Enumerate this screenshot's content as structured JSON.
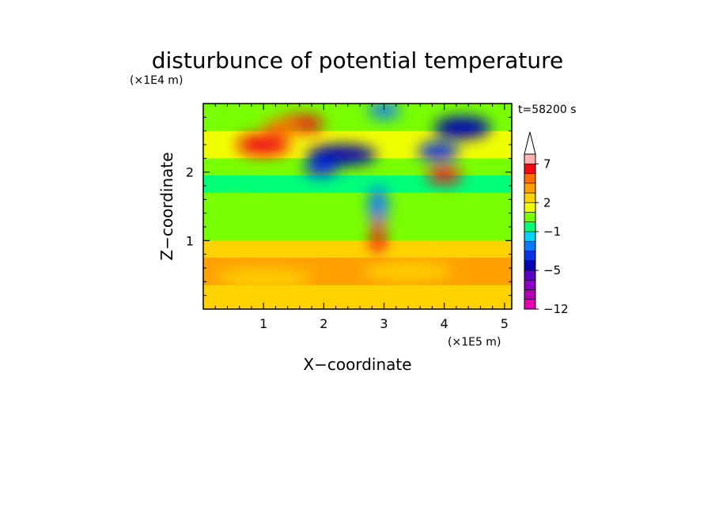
{
  "chart_data": {
    "type": "heatmap",
    "title": "disturbunce of potential temperature",
    "xlabel": "X−coordinate",
    "ylabel": "Z−coordinate",
    "x_unit": "(×1E5 m)",
    "y_unit": "(×1E4 m)",
    "time_label": "t=58200 s",
    "xlim": [
      0,
      5.12
    ],
    "ylim": [
      0,
      3.0
    ],
    "xticks": [
      1,
      2,
      3,
      4,
      5
    ],
    "yticks": [
      1,
      2
    ],
    "colorbar": {
      "extend": "max",
      "tick_labels": [
        {
          "label": "7",
          "level": 7
        },
        {
          "label": "2",
          "level": 2
        },
        {
          "label": "−1",
          "level": -1
        },
        {
          "label": "−5",
          "level": -5
        },
        {
          "label": "−12",
          "level": -12
        }
      ],
      "levels": [
        -12,
        -10,
        -8,
        -6,
        -5,
        -4,
        -3,
        -2,
        -1,
        0,
        1,
        2,
        3,
        4,
        5,
        7,
        9
      ],
      "colors": [
        "#e600b4",
        "#b400b4",
        "#8c00c8",
        "#5a00c8",
        "#0000b4",
        "#0a32e6",
        "#0a78ff",
        "#00d2ff",
        "#00ff78",
        "#78ff00",
        "#f0ff00",
        "#ffd200",
        "#ffa000",
        "#ff6e00",
        "#f00a14",
        "#ffb4b4"
      ],
      "over_color": "#ffffff"
    },
    "field_features": [
      {
        "x": 1.0,
        "z": 2.4,
        "value": 6
      },
      {
        "x": 1.6,
        "z": 2.7,
        "value": 5
      },
      {
        "x": 1.3,
        "z": 2.65,
        "value": 4
      },
      {
        "x": 2.3,
        "z": 2.25,
        "value": -5
      },
      {
        "x": 1.95,
        "z": 2.05,
        "value": -4
      },
      {
        "x": 3.0,
        "z": 2.9,
        "value": -3
      },
      {
        "x": 4.3,
        "z": 2.65,
        "value": -5
      },
      {
        "x": 3.9,
        "z": 2.3,
        "value": -4
      },
      {
        "x": 4.0,
        "z": 1.95,
        "value": 5
      },
      {
        "x": 2.9,
        "z": 1.5,
        "value": -3
      },
      {
        "x": 2.9,
        "z": 1.05,
        "value": 6
      },
      {
        "x": 1.0,
        "z": 0.45,
        "value": 2
      },
      {
        "x": 3.4,
        "z": 0.55,
        "value": 2
      },
      {
        "x": 0.5,
        "z": 1.5,
        "value": 0
      }
    ]
  }
}
